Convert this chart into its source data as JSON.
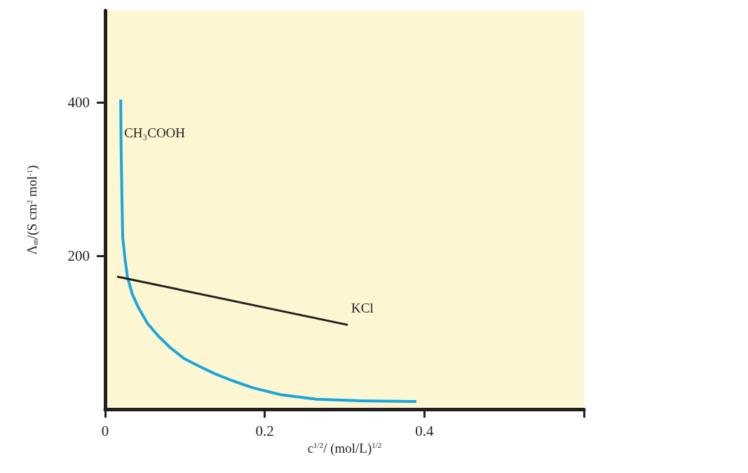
{
  "chart_data": {
    "type": "line",
    "xlabel": "c$^{1/2}$/ (mol/L)$^{1/2}$",
    "ylabel": "Λ$_{m}$/(S cm$^{2}$ mol$^{-1}$)",
    "xlim": [
      0,
      0.6
    ],
    "xticks": [
      0,
      0.2,
      0.4,
      {
        "value": 0.6,
        "label": null
      }
    ],
    "ylim": [
      0,
      520
    ],
    "yticks": [
      200,
      400
    ],
    "grid": false,
    "marker": "none",
    "series": [
      {
        "name": "CH₃COOH",
        "color": "#1aa6dc",
        "x": [
          0.0195,
          0.02,
          0.021,
          0.022,
          0.025,
          0.028,
          0.034,
          0.042,
          0.053,
          0.067,
          0.082,
          0.099,
          0.118,
          0.138,
          0.16,
          0.185,
          0.22,
          0.265,
          0.32,
          0.39
        ],
        "values": [
          404,
          340,
          279,
          224,
          195,
          172,
          150,
          132,
          112,
          95,
          80,
          66,
          56,
          46,
          37,
          28,
          19,
          13,
          11,
          10
        ]
      },
      {
        "name": "KCl",
        "color": "#231f20",
        "x": [
          0.015,
          0.304
        ],
        "values": [
          173,
          110
        ]
      }
    ]
  }
}
